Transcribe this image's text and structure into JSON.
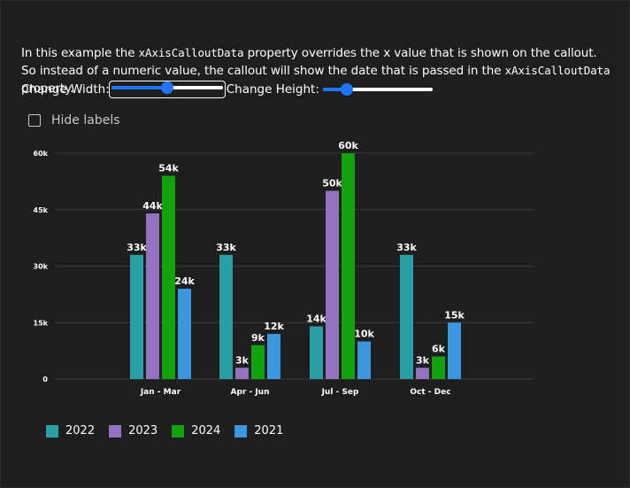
{
  "description": {
    "part1": "In this example the ",
    "code1": "xAxisCalloutData",
    "part2": " property overrides the x value that is shown on the callout. So instead of a numeric value, the callout will show the date that is passed in the ",
    "code2": "xAxisCalloutData",
    "part3": " property."
  },
  "controls": {
    "width_label": "Change Width:",
    "width_value": 0.5,
    "height_label": "Change Height:",
    "height_value": 0.22
  },
  "hide_labels": {
    "label": "Hide labels",
    "checked": false
  },
  "colors": {
    "2022": "#2aa0a4",
    "2023": "#9373c0",
    "2024": "#13a10e",
    "2021": "#3a96dd",
    "gridline": "#3b3b3b",
    "axis_text": "#ffffff"
  },
  "chart_data": {
    "type": "bar",
    "categories": [
      "Jan - Mar",
      "Apr - Jun",
      "Jul - Sep",
      "Oct - Dec"
    ],
    "series": [
      {
        "name": "2022",
        "values": [
          33000,
          33000,
          14000,
          33000
        ],
        "labels": [
          "33k",
          "33k",
          "14k",
          "33k"
        ]
      },
      {
        "name": "2023",
        "values": [
          44000,
          3000,
          50000,
          3000
        ],
        "labels": [
          "44k",
          "3k",
          "50k",
          "3k"
        ]
      },
      {
        "name": "2024",
        "values": [
          54000,
          9000,
          60000,
          6000
        ],
        "labels": [
          "54k",
          "9k",
          "60k",
          "6k"
        ]
      },
      {
        "name": "2021",
        "values": [
          24000,
          12000,
          10000,
          15000
        ],
        "labels": [
          "24k",
          "12k",
          "10k",
          "15k"
        ]
      }
    ],
    "yticks": [
      0,
      15000,
      30000,
      45000,
      60000
    ],
    "ytick_labels": [
      "0",
      "15k",
      "30k",
      "45k",
      "60k"
    ],
    "ylim": [
      0,
      60000
    ],
    "grid": true,
    "legend_position": "bottom-left"
  },
  "legend": [
    {
      "label": "2022",
      "color": "#2aa0a4"
    },
    {
      "label": "2023",
      "color": "#9373c0"
    },
    {
      "label": "2024",
      "color": "#13a10e"
    },
    {
      "label": "2021",
      "color": "#3a96dd"
    }
  ]
}
